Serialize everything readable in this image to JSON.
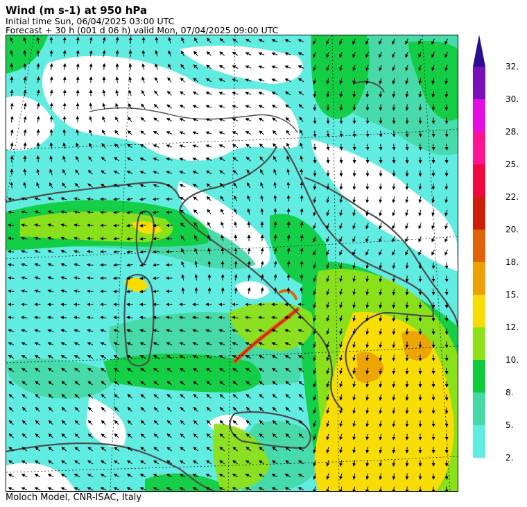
{
  "header": {
    "title": "Wind (m s-1) at 950 hPa",
    "initial_time": "Initial time  Sun, 06/04/2025  03:00 UTC",
    "forecast": "Forecast +  30 h  (001 d 06 h)  valid Mon, 07/04/2025 09:00 UTC"
  },
  "footer": {
    "credit": "Moloch Model, CNR-ISAC, Italy"
  },
  "colorbar": {
    "labels": [
      "32.",
      "30.",
      "28.",
      "25.",
      "22.",
      "20.",
      "18.",
      "15.",
      "12.",
      "10.",
      "8.",
      "5.",
      "2."
    ],
    "colors": [
      "#7a0fb8",
      "#e20fe0",
      "#ff1493",
      "#ee0a40",
      "#cc1f0a",
      "#e0640a",
      "#eba005",
      "#f7dc05",
      "#8fe019",
      "#0fcc3c",
      "#46d9a6",
      "#60ece0"
    ],
    "arrow_color": "#2a0e90"
  },
  "map": {
    "region": "Central Mediterranean / Italy",
    "background_color": "#ffffff",
    "coastline_color": "#4d4d4d"
  }
}
